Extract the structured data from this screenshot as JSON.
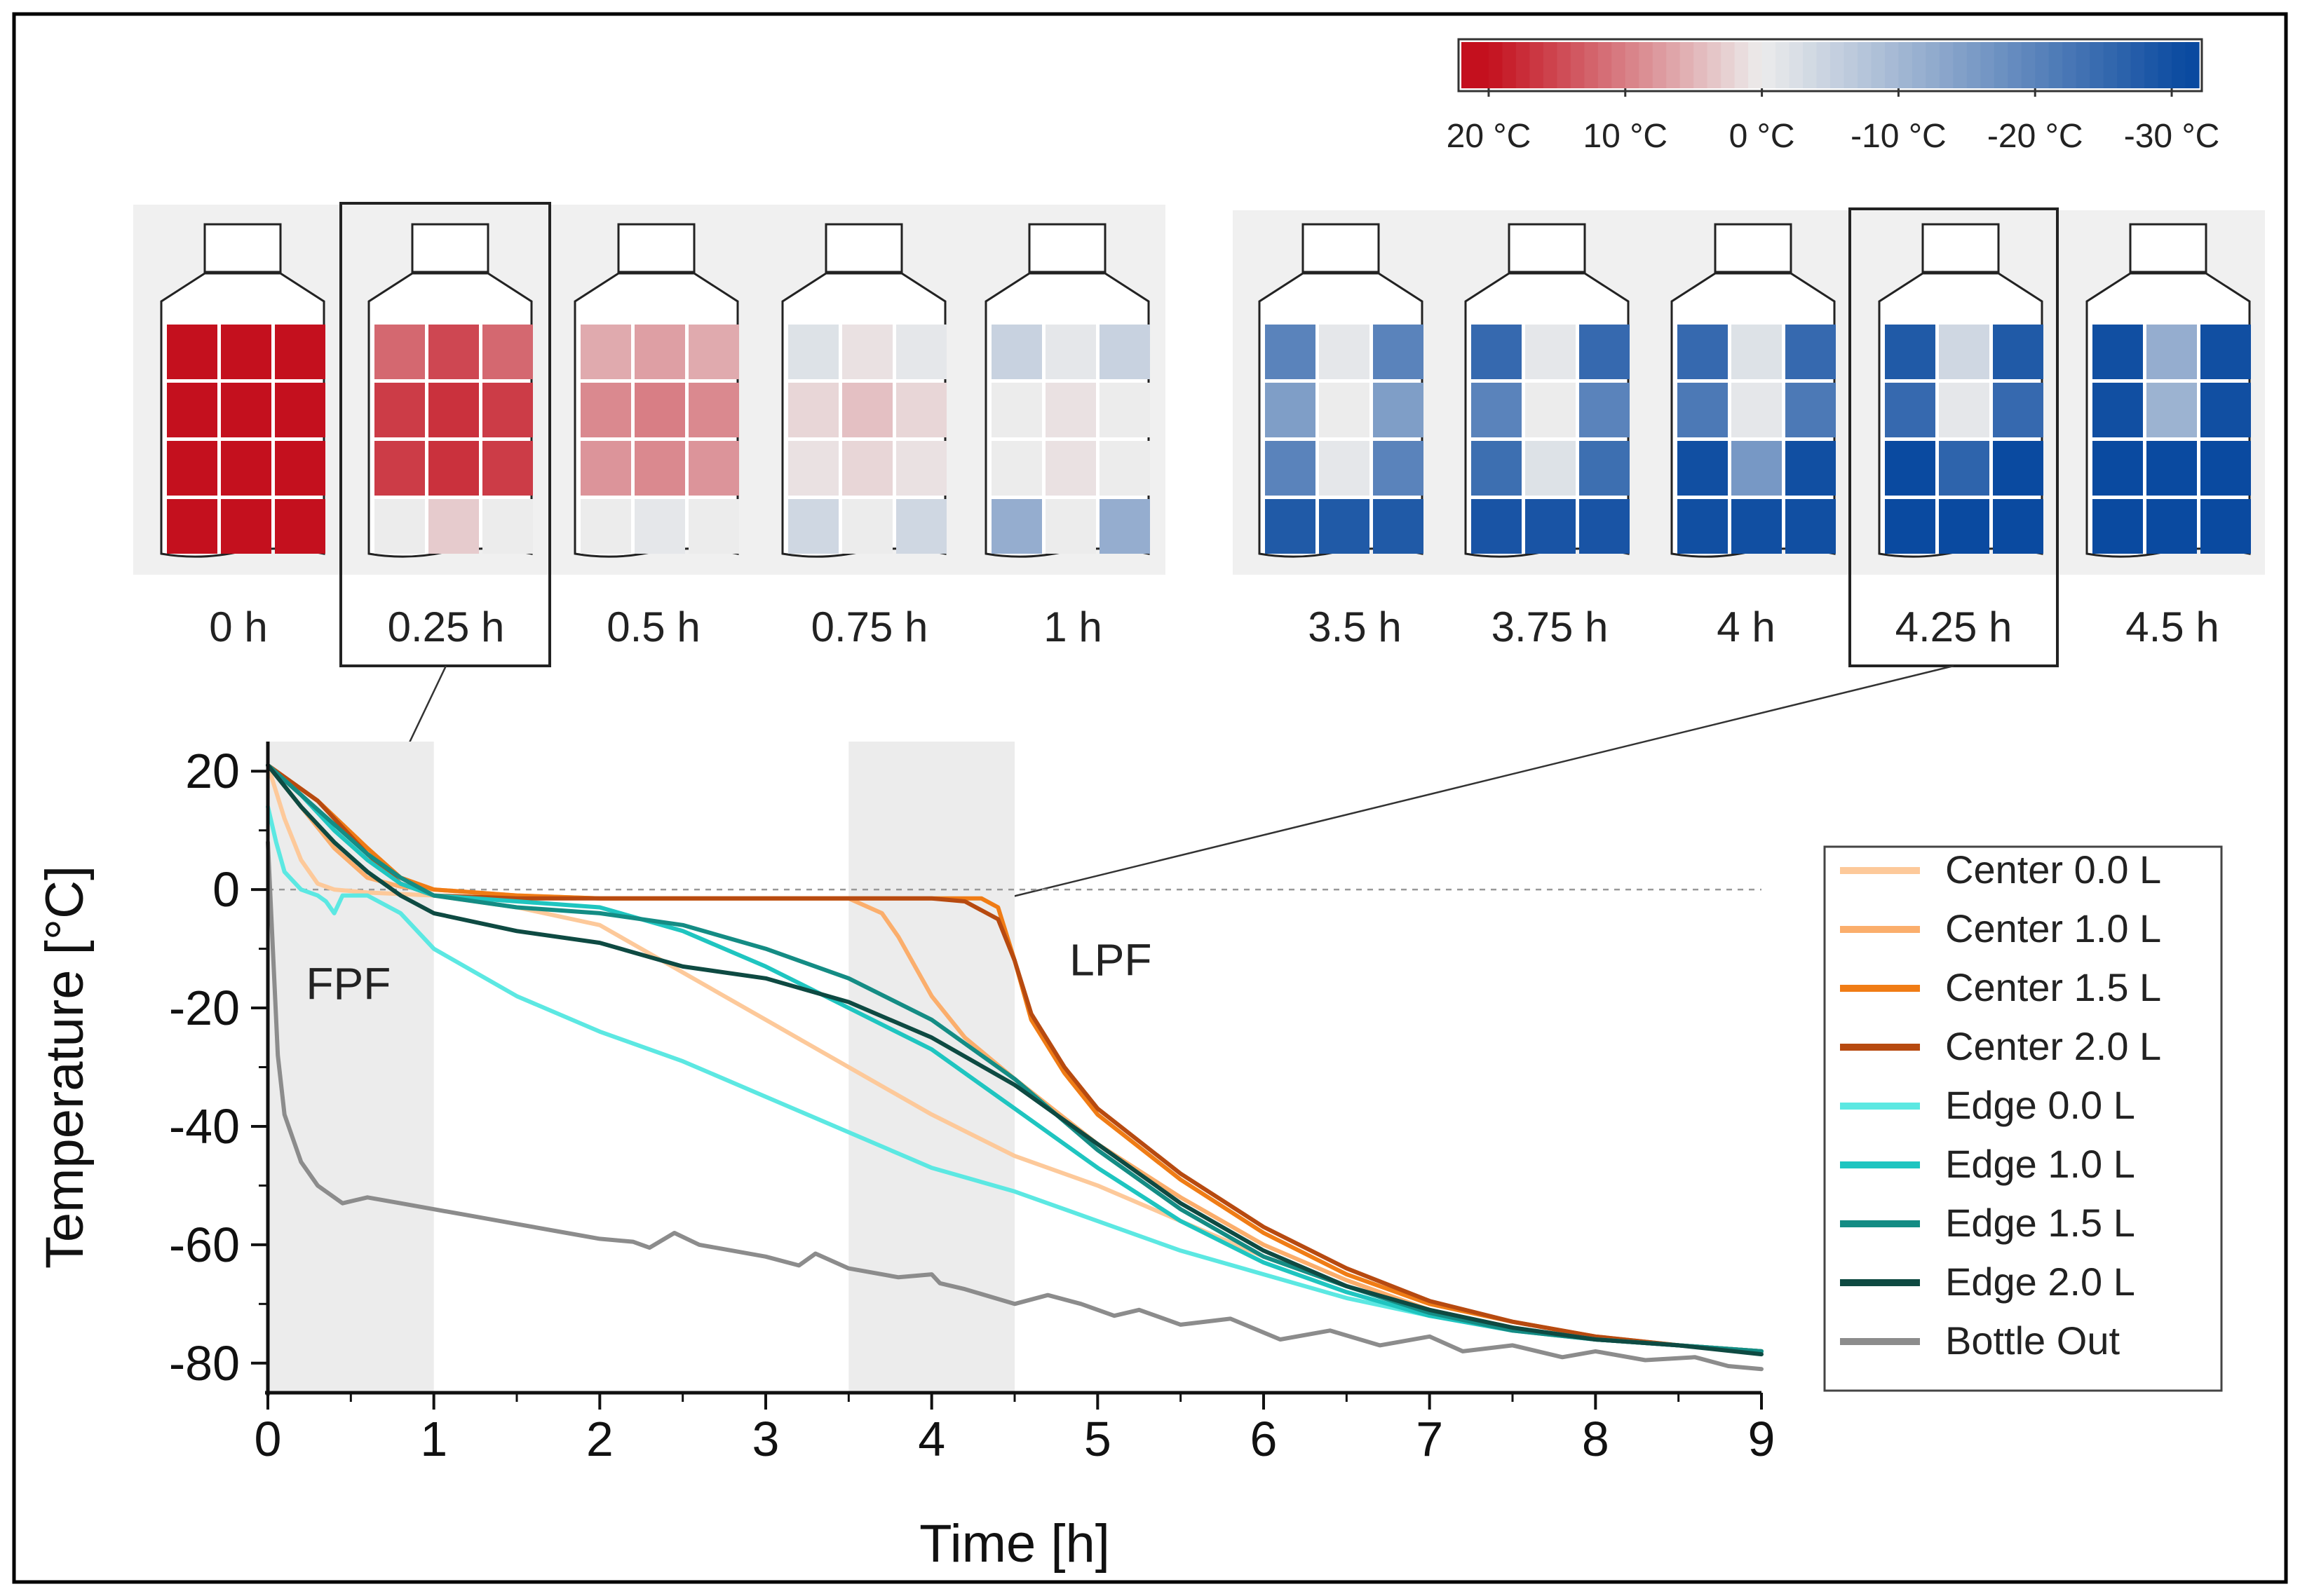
{
  "figure": {
    "frame": true
  },
  "colorbar": {
    "labels": [
      "20 °C",
      "10 °C",
      "0 °C",
      "-10 °C",
      "-20 °C",
      "-30 °C"
    ],
    "tick_values": [
      20,
      10,
      0,
      -10,
      -20,
      -30
    ],
    "range": [
      22,
      -32
    ],
    "color_warm": "#c4101e",
    "color_neutral": "#ececec",
    "color_cold": "#0a4aa0"
  },
  "bottles": {
    "group_freeze": [
      {
        "label": "0 h",
        "highlight": false,
        "temps": [
          [
            20,
            20,
            20
          ],
          [
            20,
            20,
            20
          ],
          [
            20,
            20,
            20
          ],
          [
            20,
            20,
            20
          ]
        ]
      },
      {
        "label": "0.25 h",
        "highlight": true,
        "temps": [
          [
            12,
            15,
            12
          ],
          [
            16,
            17,
            16
          ],
          [
            16,
            17,
            16
          ],
          [
            0,
            3,
            0
          ]
        ]
      },
      {
        "label": "0.5 h",
        "highlight": false,
        "temps": [
          [
            6,
            7,
            6
          ],
          [
            9,
            10,
            9
          ],
          [
            8,
            9,
            8
          ],
          [
            0,
            -1,
            0
          ]
        ]
      },
      {
        "label": "0.75 h",
        "highlight": false,
        "temps": [
          [
            -2,
            1,
            -1
          ],
          [
            2,
            4,
            2
          ],
          [
            1,
            2,
            1
          ],
          [
            -4,
            0,
            -4
          ]
        ]
      },
      {
        "label": "1 h",
        "highlight": false,
        "temps": [
          [
            -5,
            -1,
            -5
          ],
          [
            0,
            1,
            0
          ],
          [
            0,
            1,
            0
          ],
          [
            -12,
            0,
            -12
          ]
        ]
      }
    ],
    "group_late": [
      {
        "label": "3.5 h",
        "highlight": false,
        "temps": [
          [
            -20,
            -1,
            -20
          ],
          [
            -15,
            0,
            -15
          ],
          [
            -20,
            -1,
            -20
          ],
          [
            -28,
            -28,
            -28
          ]
        ]
      },
      {
        "label": "3.75 h",
        "highlight": false,
        "temps": [
          [
            -25,
            -1,
            -25
          ],
          [
            -20,
            0,
            -20
          ],
          [
            -24,
            -2,
            -24
          ],
          [
            -29,
            -29,
            -29
          ]
        ]
      },
      {
        "label": "4 h",
        "highlight": false,
        "temps": [
          [
            -25,
            -2,
            -25
          ],
          [
            -22,
            -1,
            -22
          ],
          [
            -30,
            -16,
            -30
          ],
          [
            -30,
            -30,
            -30
          ]
        ]
      },
      {
        "label": "4.25 h",
        "highlight": true,
        "temps": [
          [
            -28,
            -4,
            -28
          ],
          [
            -25,
            -1,
            -25
          ],
          [
            -31,
            -26,
            -31
          ],
          [
            -31,
            -31,
            -31
          ]
        ]
      },
      {
        "label": "4.5 h",
        "highlight": false,
        "temps": [
          [
            -30,
            -12,
            -30
          ],
          [
            -30,
            -11,
            -30
          ],
          [
            -31,
            -31,
            -31
          ],
          [
            -31,
            -31,
            -31
          ]
        ]
      }
    ]
  },
  "annotations": {
    "fpf": "FPF",
    "lpf": "LPF"
  },
  "chart_data": {
    "type": "line",
    "xlabel": "Time [h]",
    "ylabel": "Temperature [°C]",
    "xlim": [
      0,
      9
    ],
    "ylim": [
      -85,
      25
    ],
    "xticks": [
      0,
      1,
      2,
      3,
      4,
      5,
      6,
      7,
      8,
      9
    ],
    "yticks": [
      20,
      0,
      -20,
      -40,
      -60,
      -80
    ],
    "shaded_regions": [
      {
        "label": "FPF",
        "x": [
          0,
          1
        ]
      },
      {
        "label": "LPF",
        "x": [
          3.5,
          4.5
        ]
      }
    ],
    "reference_line": {
      "y": 0,
      "style": "dashed"
    },
    "legend_position": "right",
    "series": [
      {
        "name": "Center 0.0 L",
        "color": "#fdc99a",
        "points": [
          [
            0,
            21
          ],
          [
            0.1,
            12
          ],
          [
            0.2,
            5
          ],
          [
            0.3,
            1
          ],
          [
            0.4,
            0
          ],
          [
            0.6,
            -0.5
          ],
          [
            1,
            -1
          ],
          [
            1.5,
            -3
          ],
          [
            2,
            -6
          ],
          [
            2.5,
            -14
          ],
          [
            3,
            -22
          ],
          [
            3.5,
            -30
          ],
          [
            4,
            -38
          ],
          [
            4.5,
            -45
          ],
          [
            5,
            -50
          ],
          [
            5.5,
            -56
          ],
          [
            6,
            -62
          ],
          [
            6.5,
            -67
          ],
          [
            7,
            -71
          ],
          [
            7.5,
            -74
          ],
          [
            8,
            -76
          ],
          [
            8.5,
            -77
          ],
          [
            9,
            -78
          ]
        ]
      },
      {
        "name": "Center 1.0 L",
        "color": "#fbae6c",
        "points": [
          [
            0,
            21
          ],
          [
            0.2,
            14
          ],
          [
            0.4,
            7
          ],
          [
            0.6,
            2
          ],
          [
            0.8,
            0.5
          ],
          [
            1,
            0
          ],
          [
            1.5,
            -1
          ],
          [
            2,
            -1.5
          ],
          [
            3,
            -1.5
          ],
          [
            3.5,
            -1.5
          ],
          [
            3.7,
            -4
          ],
          [
            3.8,
            -8
          ],
          [
            4,
            -18
          ],
          [
            4.2,
            -25
          ],
          [
            4.5,
            -32
          ],
          [
            5,
            -43
          ],
          [
            5.5,
            -52
          ],
          [
            6,
            -60
          ],
          [
            6.5,
            -66
          ],
          [
            7,
            -71
          ],
          [
            7.5,
            -74
          ],
          [
            8,
            -76
          ],
          [
            8.5,
            -77
          ],
          [
            9,
            -78
          ]
        ]
      },
      {
        "name": "Center 1.5 L",
        "color": "#f07c15",
        "points": [
          [
            0,
            21
          ],
          [
            0.3,
            15
          ],
          [
            0.6,
            7
          ],
          [
            0.8,
            2
          ],
          [
            1,
            0
          ],
          [
            1.5,
            -1
          ],
          [
            2,
            -1.5
          ],
          [
            3,
            -1.5
          ],
          [
            4,
            -1.5
          ],
          [
            4.3,
            -1.5
          ],
          [
            4.4,
            -3
          ],
          [
            4.5,
            -12
          ],
          [
            4.6,
            -22
          ],
          [
            4.8,
            -31
          ],
          [
            5,
            -38
          ],
          [
            5.5,
            -49
          ],
          [
            6,
            -58
          ],
          [
            6.5,
            -65
          ],
          [
            7,
            -70
          ],
          [
            7.5,
            -73
          ],
          [
            8,
            -75.5
          ],
          [
            8.5,
            -77
          ],
          [
            9,
            -78
          ]
        ]
      },
      {
        "name": "Center 2.0 L",
        "color": "#b74a10",
        "points": [
          [
            0,
            21
          ],
          [
            0.3,
            15
          ],
          [
            0.6,
            6
          ],
          [
            0.8,
            1
          ],
          [
            1,
            -1
          ],
          [
            1.5,
            -1.5
          ],
          [
            2,
            -1.5
          ],
          [
            3,
            -1.5
          ],
          [
            4,
            -1.5
          ],
          [
            4.2,
            -2
          ],
          [
            4.4,
            -5
          ],
          [
            4.5,
            -12
          ],
          [
            4.6,
            -21
          ],
          [
            4.8,
            -30
          ],
          [
            5,
            -37
          ],
          [
            5.5,
            -48
          ],
          [
            6,
            -57
          ],
          [
            6.5,
            -64
          ],
          [
            7,
            -69.5
          ],
          [
            7.5,
            -73
          ],
          [
            8,
            -75.5
          ],
          [
            8.5,
            -77
          ],
          [
            9,
            -78
          ]
        ]
      },
      {
        "name": "Edge 0.0 L",
        "color": "#5ce8e2",
        "points": [
          [
            0,
            14
          ],
          [
            0.05,
            8
          ],
          [
            0.1,
            3
          ],
          [
            0.2,
            0
          ],
          [
            0.3,
            -1
          ],
          [
            0.35,
            -2
          ],
          [
            0.4,
            -4
          ],
          [
            0.45,
            -1
          ],
          [
            0.6,
            -1
          ],
          [
            0.8,
            -4
          ],
          [
            1,
            -10
          ],
          [
            1.5,
            -18
          ],
          [
            2,
            -24
          ],
          [
            2.5,
            -29
          ],
          [
            3,
            -35
          ],
          [
            3.5,
            -41
          ],
          [
            4,
            -47
          ],
          [
            4.5,
            -51
          ],
          [
            5,
            -56
          ],
          [
            5.5,
            -61
          ],
          [
            6,
            -65
          ],
          [
            6.5,
            -69
          ],
          [
            7,
            -72
          ],
          [
            7.5,
            -74
          ],
          [
            8,
            -76
          ],
          [
            8.5,
            -77
          ],
          [
            9,
            -78
          ]
        ]
      },
      {
        "name": "Edge 1.0 L",
        "color": "#1fc5c0",
        "points": [
          [
            0,
            21
          ],
          [
            0.2,
            16
          ],
          [
            0.4,
            10
          ],
          [
            0.6,
            5
          ],
          [
            0.8,
            1
          ],
          [
            1,
            -1
          ],
          [
            1.5,
            -2
          ],
          [
            2,
            -3
          ],
          [
            2.5,
            -7
          ],
          [
            3,
            -13
          ],
          [
            3.5,
            -20
          ],
          [
            4,
            -27
          ],
          [
            4.5,
            -37
          ],
          [
            5,
            -47
          ],
          [
            5.5,
            -56
          ],
          [
            6,
            -63
          ],
          [
            6.5,
            -68
          ],
          [
            7,
            -72
          ],
          [
            7.5,
            -74.5
          ],
          [
            8,
            -76
          ],
          [
            8.5,
            -77
          ],
          [
            9,
            -78
          ]
        ]
      },
      {
        "name": "Edge 1.5 L",
        "color": "#148c84",
        "points": [
          [
            0,
            21
          ],
          [
            0.2,
            16
          ],
          [
            0.4,
            11
          ],
          [
            0.6,
            6
          ],
          [
            0.8,
            2
          ],
          [
            1,
            -1
          ],
          [
            1.5,
            -3
          ],
          [
            2,
            -4
          ],
          [
            2.5,
            -6
          ],
          [
            3,
            -10
          ],
          [
            3.5,
            -15
          ],
          [
            4,
            -22
          ],
          [
            4.5,
            -32
          ],
          [
            5,
            -44
          ],
          [
            5.5,
            -54
          ],
          [
            6,
            -62
          ],
          [
            6.5,
            -67
          ],
          [
            7,
            -71.5
          ],
          [
            7.5,
            -74.5
          ],
          [
            8,
            -76
          ],
          [
            8.5,
            -77
          ],
          [
            9,
            -78
          ]
        ]
      },
      {
        "name": "Edge 2.0 L",
        "color": "#0e4a42",
        "points": [
          [
            0,
            21
          ],
          [
            0.2,
            14
          ],
          [
            0.4,
            8
          ],
          [
            0.6,
            3
          ],
          [
            0.8,
            -1
          ],
          [
            1,
            -4
          ],
          [
            1.5,
            -7
          ],
          [
            2,
            -9
          ],
          [
            2.5,
            -13
          ],
          [
            3,
            -15
          ],
          [
            3.5,
            -19
          ],
          [
            4,
            -25
          ],
          [
            4.5,
            -33
          ],
          [
            5,
            -43
          ],
          [
            5.5,
            -53
          ],
          [
            6,
            -61
          ],
          [
            6.5,
            -67
          ],
          [
            7,
            -71
          ],
          [
            7.5,
            -74
          ],
          [
            8,
            -76
          ],
          [
            8.5,
            -77
          ],
          [
            9,
            -78.5
          ]
        ]
      },
      {
        "name": "Bottle Out",
        "color": "#8c8c8c",
        "points": [
          [
            0,
            8
          ],
          [
            0.03,
            -10
          ],
          [
            0.06,
            -28
          ],
          [
            0.1,
            -38
          ],
          [
            0.2,
            -46
          ],
          [
            0.3,
            -50
          ],
          [
            0.45,
            -53
          ],
          [
            0.6,
            -52
          ],
          [
            0.8,
            -53
          ],
          [
            1,
            -54
          ],
          [
            1.2,
            -55
          ],
          [
            1.5,
            -56.5
          ],
          [
            1.8,
            -58
          ],
          [
            2,
            -59
          ],
          [
            2.2,
            -59.5
          ],
          [
            2.3,
            -60.5
          ],
          [
            2.45,
            -58
          ],
          [
            2.6,
            -60
          ],
          [
            3,
            -62
          ],
          [
            3.2,
            -63.5
          ],
          [
            3.3,
            -61.5
          ],
          [
            3.5,
            -64
          ],
          [
            3.8,
            -65.5
          ],
          [
            4,
            -65
          ],
          [
            4.05,
            -66.5
          ],
          [
            4.2,
            -67.5
          ],
          [
            4.5,
            -70
          ],
          [
            4.7,
            -68.5
          ],
          [
            4.9,
            -70
          ],
          [
            5.1,
            -72
          ],
          [
            5.25,
            -71
          ],
          [
            5.5,
            -73.5
          ],
          [
            5.8,
            -72.5
          ],
          [
            6.1,
            -76
          ],
          [
            6.4,
            -74.5
          ],
          [
            6.7,
            -77
          ],
          [
            7,
            -75.5
          ],
          [
            7.2,
            -78
          ],
          [
            7.5,
            -77
          ],
          [
            7.8,
            -79
          ],
          [
            8,
            -78
          ],
          [
            8.3,
            -79.5
          ],
          [
            8.6,
            -79
          ],
          [
            8.8,
            -80.5
          ],
          [
            9,
            -81
          ]
        ]
      }
    ]
  }
}
